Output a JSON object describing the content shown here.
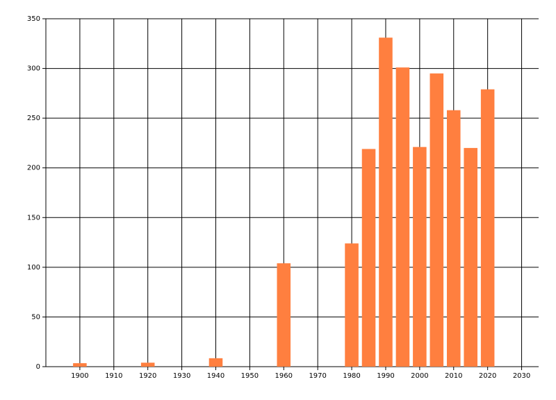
{
  "chart_data": {
    "type": "bar",
    "x": [
      1900,
      1920,
      1940,
      1960,
      1980,
      1985,
      1990,
      1995,
      2000,
      2005,
      2010,
      2015,
      2020
    ],
    "values": [
      3.5,
      4,
      8.5,
      104,
      124,
      219,
      331,
      301,
      221,
      295,
      258,
      220,
      279
    ],
    "color": "#ff7f3f",
    "xlim": [
      1890,
      2035
    ],
    "xticks": [
      1900,
      1910,
      1920,
      1930,
      1940,
      1950,
      1960,
      1970,
      1980,
      1990,
      2000,
      2010,
      2020,
      2030
    ],
    "ylim": [
      0,
      350
    ],
    "yticks": [
      0,
      50,
      100,
      150,
      200,
      250,
      300,
      350
    ],
    "grid": true
  }
}
